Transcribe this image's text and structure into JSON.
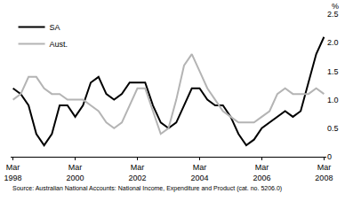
{
  "chart_data": {
    "type": "line",
    "y_label": "%",
    "note": "Source: Australian National Accounts: National Income, Expenditure and Product (cat. no. 5206.0)",
    "categories": [
      "Mar 1998",
      null,
      null,
      null,
      null,
      null,
      null,
      null,
      "Mar 2000",
      null,
      null,
      null,
      null,
      null,
      null,
      null,
      "Mar 2002",
      null,
      null,
      null,
      null,
      null,
      null,
      null,
      "Mar 2004",
      null,
      null,
      null,
      null,
      null,
      null,
      null,
      "Mar 2006",
      null,
      null,
      null,
      null,
      null,
      null,
      null,
      "Mar 2008"
    ],
    "series": [
      {
        "name": "SA",
        "color": "#000000",
        "values": [
          1.2,
          1.1,
          0.9,
          0.4,
          0.2,
          0.4,
          0.9,
          0.9,
          0.7,
          0.9,
          1.3,
          1.4,
          1.1,
          1.0,
          1.1,
          1.3,
          1.3,
          1.3,
          0.9,
          0.6,
          0.5,
          0.6,
          0.9,
          1.2,
          1.2,
          1.0,
          0.9,
          0.9,
          0.7,
          0.4,
          0.2,
          0.3,
          0.5,
          0.6,
          0.7,
          0.8,
          0.7,
          0.8,
          1.3,
          1.8,
          2.1
        ]
      },
      {
        "name": "Aust.",
        "color": "#b4b4b4",
        "values": [
          1.0,
          1.1,
          1.4,
          1.4,
          1.2,
          1.1,
          1.1,
          1.0,
          1.0,
          1.0,
          0.9,
          0.8,
          0.6,
          0.5,
          0.6,
          0.9,
          1.2,
          1.2,
          0.8,
          0.4,
          0.5,
          1.0,
          1.6,
          1.8,
          1.5,
          1.2,
          1.0,
          0.8,
          0.7,
          0.6,
          0.6,
          0.6,
          0.7,
          0.8,
          1.1,
          1.2,
          1.1,
          1.1,
          1.1,
          1.2,
          1.1
        ]
      }
    ],
    "ylim": [
      0,
      2.5
    ],
    "yticks": [
      0,
      0.5,
      {
        "value": 1,
        "label": "1.0"
      },
      1.5,
      {
        "value": 2,
        "label": "2.0"
      },
      2.5
    ],
    "grid": false,
    "legend": "top-left"
  }
}
